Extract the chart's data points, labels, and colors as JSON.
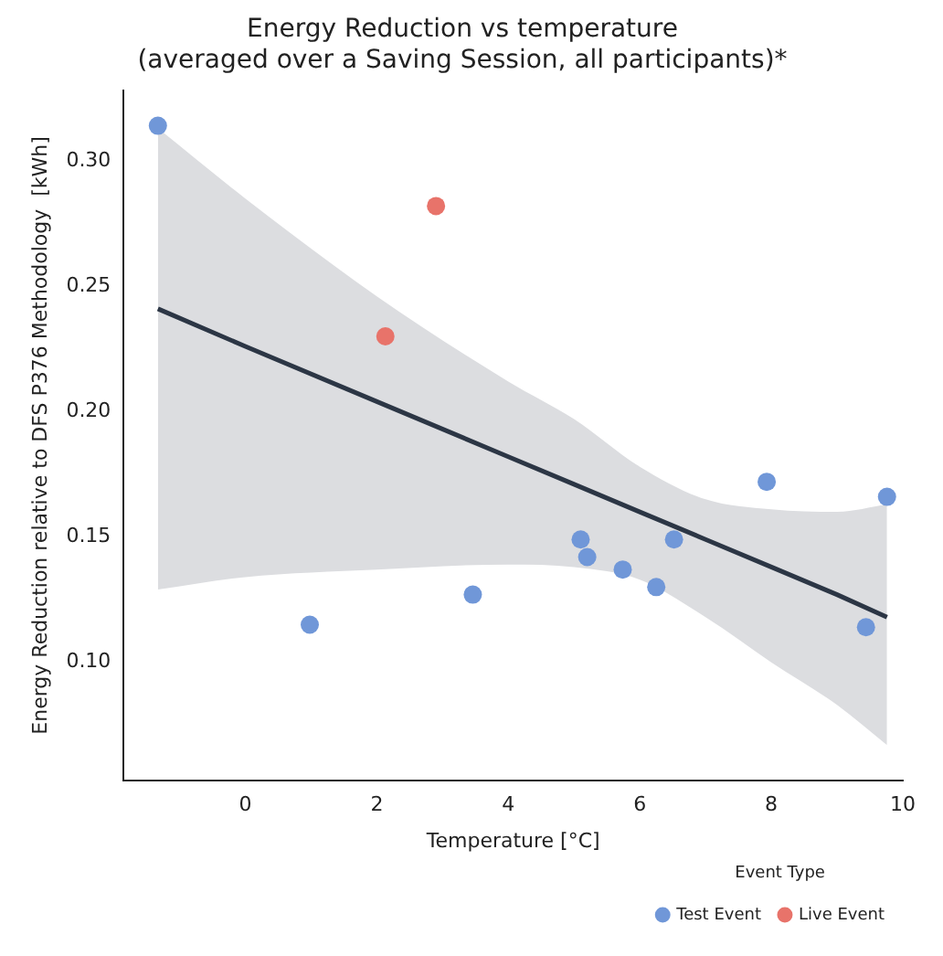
{
  "chart_data": {
    "type": "scatter",
    "title": "Energy Reduction vs temperature\n(averaged over a Saving Session, all participants)*",
    "xlabel": "Temperature [°C]",
    "ylabel": "Energy Reduction relative to DFS P376 Methodology  [kWh]",
    "legend_title": "Event Type",
    "series": [
      {
        "name": "Test Event",
        "color": "#7097d8",
        "marker": "circle",
        "x": [
          -1.33,
          0.98,
          3.46,
          5.1,
          5.2,
          5.74,
          6.25,
          6.52,
          7.93,
          9.76,
          9.44
        ],
        "values": [
          0.314,
          0.115,
          0.127,
          0.149,
          0.142,
          0.137,
          0.13,
          0.149,
          0.172,
          0.166,
          0.114
        ]
      },
      {
        "name": "Live Event",
        "color": "#e8736a",
        "marker": "circle",
        "x": [
          2.9,
          2.13
        ],
        "values": [
          0.282,
          0.23
        ]
      },
      {
        "type": "line",
        "color": "#2c3645",
        "marker": "none",
        "x": [
          -1.33,
          0,
          2,
          4,
          5,
          6,
          7,
          8,
          9,
          9.76
        ],
        "values": [
          0.241,
          0.226,
          0.204,
          0.182,
          0.171,
          0.16,
          0.149,
          0.138,
          0.127,
          0.118
        ],
        "lower": [
          0.129,
          0.134,
          0.137,
          0.139,
          0.138,
          0.133,
          0.118,
          0.1,
          0.083,
          0.067
        ],
        "upper": [
          0.313,
          0.285,
          0.246,
          0.212,
          0.197,
          0.178,
          0.165,
          0.161,
          0.16,
          0.163
        ]
      }
    ],
    "xlim": [
      -1.85,
      10
    ],
    "xticks": [
      0,
      2,
      4,
      6,
      8,
      10
    ],
    "ylim": [
      0.053,
      0.328
    ],
    "yticks": [
      {
        "value": 0.1,
        "label": "0.10"
      },
      0.15,
      {
        "value": 0.2,
        "label": "0.20"
      },
      0.25,
      {
        "value": 0.3,
        "label": "0.30"
      }
    ],
    "grid": false,
    "legend": "bottom right",
    "line_style": "solid"
  }
}
